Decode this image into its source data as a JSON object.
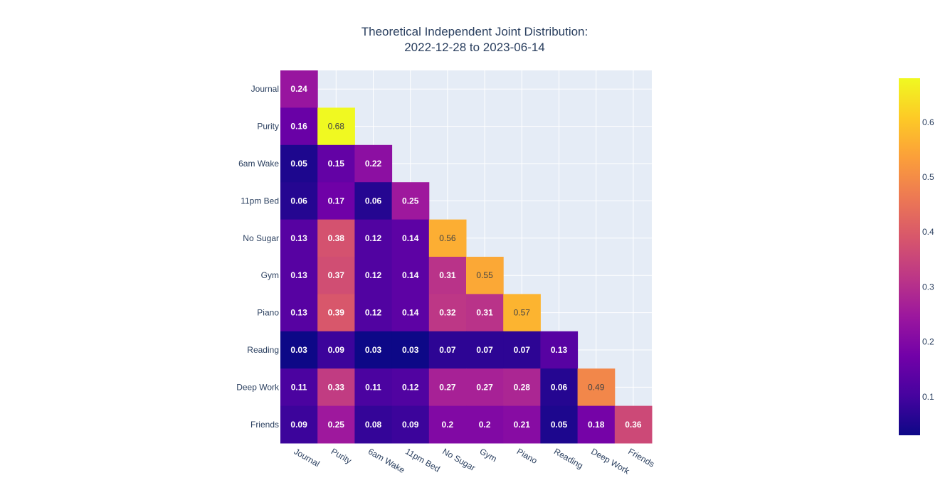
{
  "chart_data": {
    "type": "heatmap",
    "title_lines": [
      "Theoretical Independent Joint Distribution:",
      "2022-12-28 to 2023-06-14"
    ],
    "labels": [
      "Journal",
      "Purity",
      "6am Wake",
      "11pm Bed",
      "No Sugar",
      "Gym",
      "Piano",
      "Reading",
      "Deep Work",
      "Friends"
    ],
    "values": [
      [
        0.24
      ],
      [
        0.16,
        0.68
      ],
      [
        0.05,
        0.15,
        0.22
      ],
      [
        0.06,
        0.17,
        0.06,
        0.25
      ],
      [
        0.13,
        0.38,
        0.12,
        0.14,
        0.56
      ],
      [
        0.13,
        0.37,
        0.12,
        0.14,
        0.31,
        0.55
      ],
      [
        0.13,
        0.39,
        0.12,
        0.14,
        0.32,
        0.31,
        0.57
      ],
      [
        0.03,
        0.09,
        0.03,
        0.03,
        0.07,
        0.07,
        0.07,
        0.13
      ],
      [
        0.11,
        0.33,
        0.11,
        0.12,
        0.27,
        0.27,
        0.28,
        0.06,
        0.49
      ],
      [
        0.09,
        0.25,
        0.08,
        0.09,
        0.2,
        0.2,
        0.21,
        0.05,
        0.18,
        0.36
      ]
    ],
    "colorscale": "Plasma",
    "zmin": 0.03,
    "zmax": 0.68,
    "colorbar_ticks": [
      0.1,
      0.2,
      0.3,
      0.4,
      0.5,
      0.6
    ],
    "grid": true,
    "plot_background": "#e5ecf6"
  }
}
